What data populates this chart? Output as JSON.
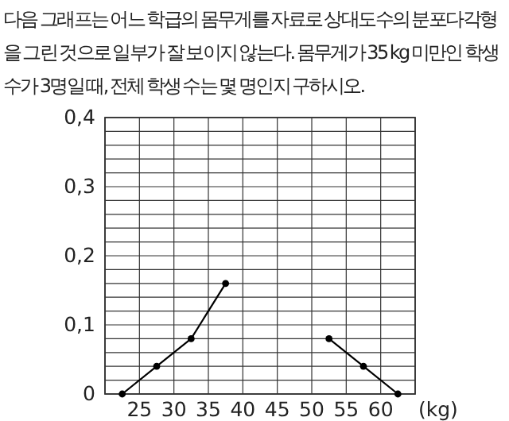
{
  "chart_data": {
    "type": "line",
    "title": "다음 그래프는 어느 학급의 몸무게를 자료로 상대도수의 분포다각형을 그린 것으로 일부가 잘 보이지 않는다. 몸무게가 35 kg 미만인 학생수가 3명일 때, 전체 학생 수는 몇 명인지 구하시오.",
    "xlabel": "(kg)",
    "x": [
      22.5,
      27.5,
      32.5,
      37.5,
      42.5,
      47.5,
      52.5,
      57.5,
      62.5
    ],
    "series": [
      {
        "color": "#000000",
        "values": [
          0,
          0.04,
          0.08,
          0.16,
          null,
          null,
          0.08,
          0.04,
          0
        ]
      }
    ],
    "xlim": [
      20,
      65
    ],
    "xticks": [
      {
        "value": 20,
        "label": null
      },
      25,
      30,
      35,
      40,
      45,
      50,
      55,
      60,
      {
        "value": 65,
        "label": null
      }
    ],
    "ylim": [
      0,
      0.4
    ],
    "yticks": [
      0,
      {
        "value": 0.02,
        "label": null
      },
      {
        "value": 0.04,
        "label": null
      },
      {
        "value": 0.06,
        "label": null
      },
      {
        "value": 0.08,
        "label": null
      },
      {
        "value": 0.1,
        "label": "0,1"
      },
      {
        "value": 0.12,
        "label": null
      },
      {
        "value": 0.14,
        "label": null
      },
      {
        "value": 0.16,
        "label": null
      },
      {
        "value": 0.18,
        "label": null
      },
      {
        "value": 0.2,
        "label": "0,2"
      },
      {
        "value": 0.22,
        "label": null
      },
      {
        "value": 0.24,
        "label": null
      },
      {
        "value": 0.26,
        "label": null
      },
      {
        "value": 0.28,
        "label": null
      },
      {
        "value": 0.3,
        "label": "0,3"
      },
      {
        "value": 0.32,
        "label": null
      },
      {
        "value": 0.34,
        "label": null
      },
      {
        "value": 0.36,
        "label": null
      },
      {
        "value": 0.38,
        "label": null
      },
      {
        "value": 0.4,
        "label": "0,4"
      }
    ],
    "grid": true,
    "marker": "circle",
    "line_style": "solid"
  }
}
